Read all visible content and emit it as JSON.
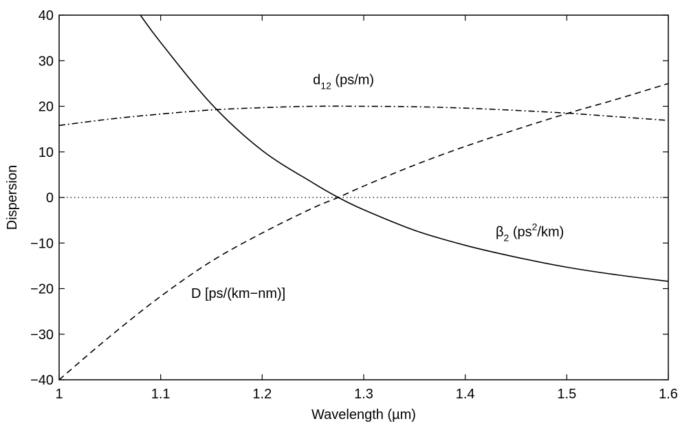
{
  "chart_data": {
    "type": "line",
    "title": "",
    "xlabel": "Wavelength (µm)",
    "ylabel": "Dispersion",
    "xlim": [
      1.0,
      1.6
    ],
    "ylim": [
      -40,
      40
    ],
    "x_ticks": [
      1.0,
      1.1,
      1.2,
      1.3,
      1.4,
      1.5,
      1.6
    ],
    "x_tick_labels": [
      "1",
      "1.1",
      "1.2",
      "1.3",
      "1.4",
      "1.5",
      "1.6"
    ],
    "y_ticks": [
      -40,
      -30,
      -20,
      -10,
      0,
      10,
      20,
      30,
      40
    ],
    "y_tick_labels": [
      "−40",
      "−30",
      "−20",
      "−10",
      "0",
      "10",
      "20",
      "30",
      "40"
    ],
    "grid": false,
    "legend": "none",
    "series": [
      {
        "style": "dashed",
        "color": "#000000",
        "x": [
          1.0,
          1.05,
          1.1,
          1.15,
          1.2,
          1.25,
          1.275,
          1.3,
          1.35,
          1.4,
          1.45,
          1.5,
          1.55,
          1.6
        ],
        "values": [
          -40,
          -30.5,
          -21.7,
          -14.0,
          -7.8,
          -2.3,
          0.0,
          2.5,
          7.1,
          11.2,
          14.9,
          18.4,
          21.6,
          25.0
        ]
      },
      {
        "style": "solid",
        "color": "#000000",
        "x": [
          1.08,
          1.1,
          1.15,
          1.2,
          1.25,
          1.275,
          1.3,
          1.35,
          1.4,
          1.45,
          1.5,
          1.55,
          1.6
        ],
        "values": [
          40,
          34.0,
          20.5,
          10.3,
          3.2,
          0.0,
          -2.7,
          -7.2,
          -10.5,
          -13.1,
          -15.3,
          -17.0,
          -18.4
        ]
      },
      {
        "style": "dash-dot",
        "color": "#000000",
        "x": [
          1.0,
          1.05,
          1.1,
          1.15,
          1.2,
          1.25,
          1.3,
          1.35,
          1.4,
          1.45,
          1.5,
          1.55,
          1.6
        ],
        "values": [
          15.8,
          17.2,
          18.3,
          19.2,
          19.7,
          20.0,
          20.0,
          19.9,
          19.6,
          19.1,
          18.5,
          17.7,
          16.9
        ]
      },
      {
        "style": "dotted",
        "color": "#000000",
        "x": [
          1.0,
          1.6
        ],
        "values": [
          0,
          0
        ]
      }
    ],
    "annotations": [
      {
        "id": "d12",
        "main": "d",
        "sub": "12",
        "suffix": " (ps/m)",
        "x": 1.25,
        "y": 24.8
      },
      {
        "id": "beta2",
        "main": "β",
        "sub": "2",
        "mid": " (ps",
        "sup": "2",
        "suffix": "/km)",
        "x": 1.43,
        "y": -8.5
      },
      {
        "id": "D",
        "main": "D [ps/(km−nm)]",
        "x": 1.13,
        "y": -22.0
      }
    ]
  }
}
